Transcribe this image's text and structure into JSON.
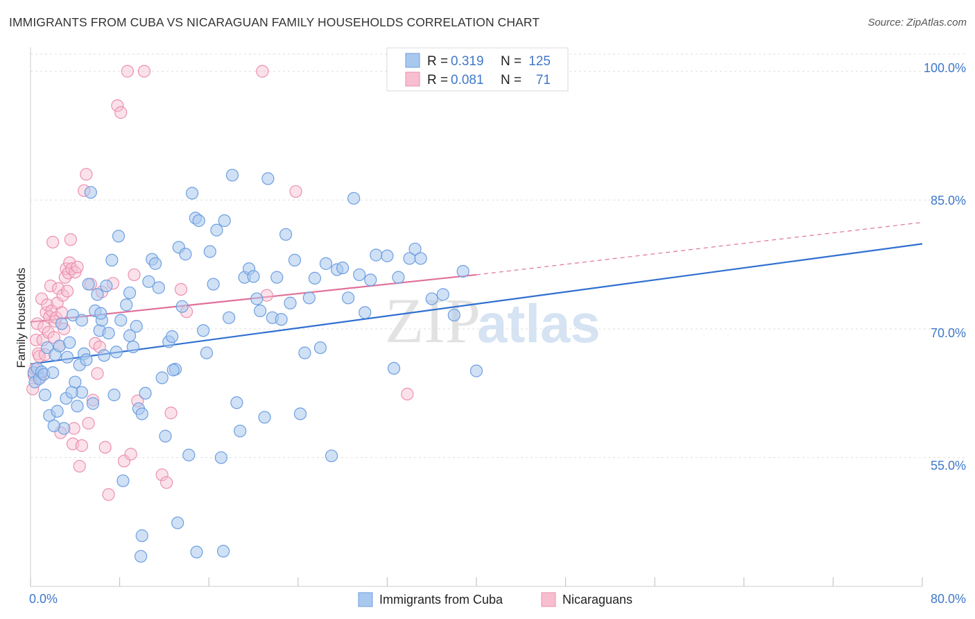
{
  "title": "IMMIGRANTS FROM CUBA VS NICARAGUAN FAMILY HOUSEHOLDS CORRELATION CHART",
  "source": "Source: ZipAtlas.com",
  "watermark": {
    "zip": "ZIP",
    "atlas": "atlas"
  },
  "legend_stats": [
    {
      "r_label": "R =",
      "r_value": "0.319",
      "n_label": "N =",
      "n_value": "125"
    },
    {
      "r_label": "R =",
      "r_value": "0.081",
      "n_label": "N =",
      "n_value": "71"
    }
  ],
  "colors": {
    "blue_fill": "#a9c8ef",
    "blue_stroke": "#6d9ee0",
    "blue_line": "#2f6fd0",
    "pink_fill": "#f7bed0",
    "pink_stroke": "#ec8fae",
    "pink_line": "#e0709a",
    "axis_text": "#3f78c9",
    "grid": "#dddddd"
  },
  "chart_data": {
    "type": "scatter",
    "title": "IMMIGRANTS FROM CUBA VS NICARAGUAN FAMILY HOUSEHOLDS CORRELATION CHART",
    "xlabel": "",
    "ylabel": "Family Households",
    "xlim": [
      0,
      80
    ],
    "ylim": [
      40,
      102
    ],
    "x_tick_labels": [
      "0.0%",
      "80.0%"
    ],
    "y_ticks": [
      55,
      70,
      85,
      100
    ],
    "y_tick_labels": [
      "55.0%",
      "70.0%",
      "85.0%",
      "100.0%"
    ],
    "grid": true,
    "series": [
      {
        "name": "Immigrants from Cuba",
        "r": 0.319,
        "n": 125,
        "trend": {
          "x0": 0,
          "y0": 65.9,
          "x1": 80,
          "y1": 79.9
        },
        "points": [
          [
            0.3,
            64.9
          ],
          [
            0.4,
            63.8
          ],
          [
            0.6,
            65.4
          ],
          [
            0.8,
            64.2
          ],
          [
            1.0,
            65.0
          ],
          [
            1.2,
            64.7
          ],
          [
            1.3,
            62.3
          ],
          [
            1.5,
            67.8
          ],
          [
            1.7,
            59.9
          ],
          [
            2.0,
            64.9
          ],
          [
            2.2,
            67.0
          ],
          [
            2.4,
            60.4
          ],
          [
            2.6,
            68.0
          ],
          [
            2.8,
            70.6
          ],
          [
            3.0,
            58.4
          ],
          [
            3.2,
            61.9
          ],
          [
            3.3,
            66.7
          ],
          [
            3.5,
            68.4
          ],
          [
            3.8,
            71.6
          ],
          [
            4.0,
            63.8
          ],
          [
            4.2,
            61.0
          ],
          [
            4.4,
            65.8
          ],
          [
            4.6,
            62.6
          ],
          [
            4.8,
            67.1
          ],
          [
            5.0,
            66.4
          ],
          [
            5.2,
            75.2
          ],
          [
            5.4,
            85.9
          ],
          [
            5.6,
            61.3
          ],
          [
            5.8,
            72.1
          ],
          [
            6.0,
            74.0
          ],
          [
            6.2,
            69.8
          ],
          [
            6.4,
            71.0
          ],
          [
            6.6,
            66.9
          ],
          [
            6.8,
            75.0
          ],
          [
            7.0,
            69.5
          ],
          [
            7.3,
            78.0
          ],
          [
            7.5,
            62.3
          ],
          [
            7.7,
            67.3
          ],
          [
            7.9,
            80.8
          ],
          [
            8.1,
            71.0
          ],
          [
            8.3,
            52.3
          ],
          [
            8.6,
            72.8
          ],
          [
            8.9,
            74.2
          ],
          [
            9.2,
            67.9
          ],
          [
            9.5,
            70.3
          ],
          [
            9.7,
            60.7
          ],
          [
            10.0,
            60.1
          ],
          [
            10.3,
            62.5
          ],
          [
            10.6,
            75.5
          ],
          [
            10.9,
            78.1
          ],
          [
            11.2,
            77.6
          ],
          [
            11.5,
            74.8
          ],
          [
            11.8,
            64.3
          ],
          [
            12.1,
            57.5
          ],
          [
            12.4,
            68.5
          ],
          [
            12.7,
            69.1
          ],
          [
            13.0,
            65.3
          ],
          [
            13.3,
            79.5
          ],
          [
            13.6,
            72.6
          ],
          [
            13.9,
            78.7
          ],
          [
            14.2,
            55.3
          ],
          [
            14.5,
            85.8
          ],
          [
            14.8,
            82.9
          ],
          [
            15.1,
            82.6
          ],
          [
            15.5,
            69.8
          ],
          [
            15.8,
            67.2
          ],
          [
            16.1,
            79.0
          ],
          [
            16.4,
            75.2
          ],
          [
            16.7,
            81.5
          ],
          [
            17.1,
            55.0
          ],
          [
            17.4,
            82.6
          ],
          [
            17.8,
            71.3
          ],
          [
            18.1,
            87.9
          ],
          [
            18.5,
            61.4
          ],
          [
            18.8,
            58.1
          ],
          [
            19.2,
            76.0
          ],
          [
            19.6,
            77.0
          ],
          [
            20.0,
            76.1
          ],
          [
            20.3,
            73.5
          ],
          [
            20.6,
            72.1
          ],
          [
            21.0,
            59.7
          ],
          [
            21.3,
            87.5
          ],
          [
            21.7,
            71.3
          ],
          [
            22.1,
            76.0
          ],
          [
            22.5,
            71.1
          ],
          [
            22.9,
            81.0
          ],
          [
            23.3,
            73.0
          ],
          [
            23.7,
            78.0
          ],
          [
            24.2,
            60.1
          ],
          [
            24.6,
            67.2
          ],
          [
            25.0,
            73.6
          ],
          [
            25.5,
            75.9
          ],
          [
            26.0,
            67.8
          ],
          [
            26.5,
            77.6
          ],
          [
            27.0,
            55.2
          ],
          [
            27.5,
            76.9
          ],
          [
            28.0,
            77.1
          ],
          [
            28.5,
            73.6
          ],
          [
            29.0,
            85.2
          ],
          [
            29.5,
            76.3
          ],
          [
            30.0,
            71.9
          ],
          [
            30.5,
            75.7
          ],
          [
            31.0,
            78.6
          ],
          [
            32.0,
            78.5
          ],
          [
            32.6,
            65.4
          ],
          [
            33.0,
            76.0
          ],
          [
            34.0,
            78.2
          ],
          [
            34.5,
            79.3
          ],
          [
            35.0,
            78.2
          ],
          [
            36.0,
            73.5
          ],
          [
            37.0,
            74.0
          ],
          [
            38.0,
            71.6
          ],
          [
            38.8,
            76.7
          ],
          [
            40.0,
            65.1
          ],
          [
            13.2,
            47.4
          ],
          [
            10.0,
            45.9
          ],
          [
            9.9,
            43.5
          ],
          [
            14.9,
            44.0
          ],
          [
            17.3,
            44.1
          ],
          [
            6.3,
            71.8
          ],
          [
            4.6,
            71.0
          ],
          [
            2.1,
            58.7
          ],
          [
            3.7,
            62.6
          ],
          [
            8.9,
            69.2
          ],
          [
            12.8,
            65.2
          ]
        ]
      },
      {
        "name": "Nicaraguans",
        "r": 0.081,
        "n": 71,
        "trend": {
          "x0": 0,
          "y0": 70.8,
          "x1": 40,
          "y1": 76.3,
          "dash_x1": 80,
          "dash_y1": 82.4
        },
        "points": [
          [
            0.2,
            63.0
          ],
          [
            0.3,
            64.6
          ],
          [
            0.4,
            65.3
          ],
          [
            0.5,
            68.7
          ],
          [
            0.6,
            70.6
          ],
          [
            0.7,
            67.1
          ],
          [
            0.8,
            66.8
          ],
          [
            0.9,
            64.4
          ],
          [
            1.0,
            73.5
          ],
          [
            1.1,
            68.7
          ],
          [
            1.2,
            70.2
          ],
          [
            1.3,
            67.0
          ],
          [
            1.4,
            71.9
          ],
          [
            1.5,
            72.8
          ],
          [
            1.6,
            69.6
          ],
          [
            1.7,
            71.4
          ],
          [
            1.8,
            75.0
          ],
          [
            1.9,
            72.1
          ],
          [
            2.0,
            80.1
          ],
          [
            2.1,
            69.0
          ],
          [
            2.2,
            70.9
          ],
          [
            2.3,
            71.3
          ],
          [
            2.4,
            73.0
          ],
          [
            2.5,
            74.7
          ],
          [
            2.6,
            68.0
          ],
          [
            2.7,
            57.9
          ],
          [
            2.8,
            71.9
          ],
          [
            2.9,
            73.9
          ],
          [
            3.0,
            70.0
          ],
          [
            3.1,
            76.0
          ],
          [
            3.2,
            77.0
          ],
          [
            3.3,
            74.4
          ],
          [
            3.4,
            76.5
          ],
          [
            3.5,
            77.7
          ],
          [
            3.6,
            80.4
          ],
          [
            3.7,
            77.0
          ],
          [
            3.8,
            56.6
          ],
          [
            3.9,
            58.4
          ],
          [
            4.0,
            76.6
          ],
          [
            4.2,
            77.2
          ],
          [
            4.4,
            54.0
          ],
          [
            4.6,
            56.4
          ],
          [
            4.8,
            86.1
          ],
          [
            5.0,
            88.0
          ],
          [
            5.2,
            59.0
          ],
          [
            5.4,
            75.2
          ],
          [
            5.6,
            61.7
          ],
          [
            5.8,
            68.3
          ],
          [
            6.0,
            64.8
          ],
          [
            6.2,
            67.9
          ],
          [
            6.4,
            74.3
          ],
          [
            6.7,
            56.2
          ],
          [
            7.0,
            50.7
          ],
          [
            7.4,
            75.3
          ],
          [
            7.8,
            96.0
          ],
          [
            8.1,
            95.2
          ],
          [
            8.4,
            54.6
          ],
          [
            8.7,
            100.0
          ],
          [
            9.0,
            55.4
          ],
          [
            9.3,
            76.3
          ],
          [
            9.6,
            61.6
          ],
          [
            10.2,
            100.0
          ],
          [
            11.8,
            53.0
          ],
          [
            12.2,
            52.1
          ],
          [
            12.6,
            60.2
          ],
          [
            13.5,
            74.6
          ],
          [
            14.0,
            72.0
          ],
          [
            20.8,
            100.0
          ],
          [
            21.2,
            73.9
          ],
          [
            23.8,
            86.0
          ],
          [
            33.8,
            62.4
          ]
        ]
      }
    ]
  },
  "bottom_legend": [
    "Immigrants from Cuba",
    "Nicaraguans"
  ]
}
